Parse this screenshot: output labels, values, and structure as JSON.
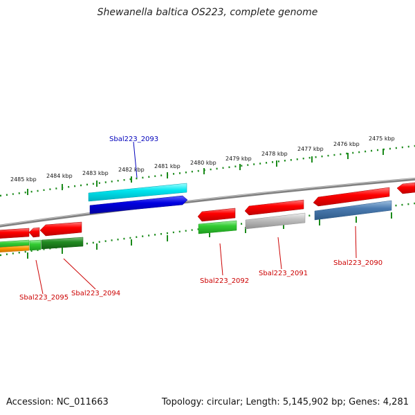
{
  "title": "Shewanella baltica OS223, complete genome",
  "footer": {
    "accession": "Accession: NC_011663",
    "topology": "Topology: circular; Length: 5,145,902 bp; Genes: 4,281"
  },
  "scale_labels": [
    "2485 kbp",
    "2484 kbp",
    "2483 kbp",
    "2482 kbp",
    "2481 kbp",
    "2480 kbp",
    "2479 kbp",
    "2478 kbp",
    "2477 kbp",
    "2476 kbp",
    "2475 kbp"
  ],
  "gene_labels": {
    "g2093": "Sbal223_2093",
    "g2095": "Sbal223_2095",
    "g2094": "Sbal223_2094",
    "g2092": "Sbal223_2092",
    "g2091": "Sbal223_2091",
    "g2090": "Sbal223_2090"
  },
  "colors": {
    "forward_cds": "#ff0000",
    "highlight_cyan": "#00e5ee",
    "highlight_blue": "#0000e0",
    "green": "#33cc33",
    "dark_green": "#228b22",
    "orange": "#ff9900",
    "grey": "#bdbdbd",
    "steel_blue": "#4a7bb0",
    "backbone": "#808080",
    "ticks": "#1a8a1a"
  }
}
